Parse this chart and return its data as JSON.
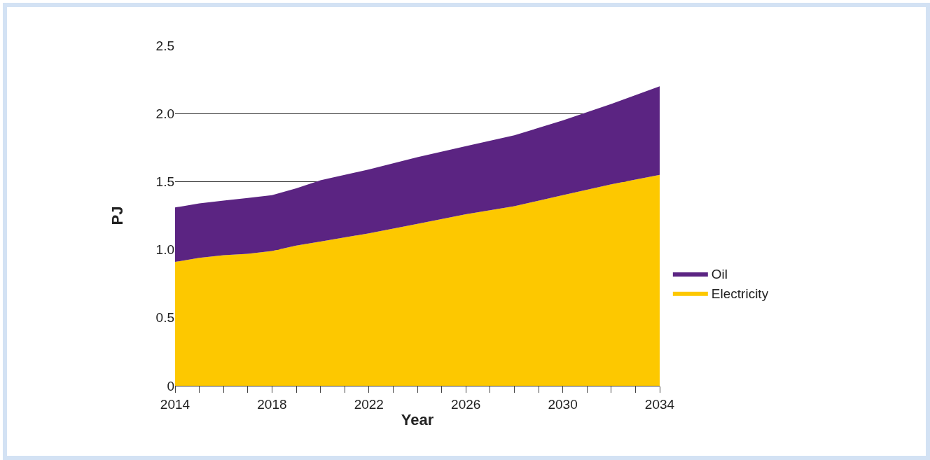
{
  "chart_data": {
    "type": "area",
    "stacked": true,
    "xlabel": "Year",
    "ylabel": "PJ",
    "x": [
      2014,
      2015,
      2016,
      2017,
      2018,
      2019,
      2020,
      2022,
      2024,
      2026,
      2028,
      2030,
      2032,
      2034
    ],
    "series": [
      {
        "name": "Electricity",
        "color": "#fdc800",
        "values": [
          0.91,
          0.94,
          0.96,
          0.97,
          0.99,
          1.03,
          1.06,
          1.12,
          1.19,
          1.26,
          1.32,
          1.4,
          1.48,
          1.55
        ]
      },
      {
        "name": "Oil",
        "color": "#5b2482",
        "values": [
          0.4,
          0.4,
          0.4,
          0.41,
          0.41,
          0.42,
          0.45,
          0.47,
          0.49,
          0.5,
          0.52,
          0.55,
          0.59,
          0.65
        ]
      }
    ],
    "xlim": [
      2014,
      2034
    ],
    "xticks": [
      2014,
      {
        "value": 2015,
        "label": null
      },
      {
        "value": 2016,
        "label": null
      },
      {
        "value": 2017,
        "label": null
      },
      2018,
      {
        "value": 2019,
        "label": null
      },
      {
        "value": 2020,
        "label": null
      },
      {
        "value": 2021,
        "label": null
      },
      2022,
      {
        "value": 2023,
        "label": null
      },
      {
        "value": 2024,
        "label": null
      },
      {
        "value": 2025,
        "label": null
      },
      2026,
      {
        "value": 2027,
        "label": null
      },
      {
        "value": 2028,
        "label": null
      },
      {
        "value": 2029,
        "label": null
      },
      2030,
      {
        "value": 2031,
        "label": null
      },
      {
        "value": 2032,
        "label": null
      },
      {
        "value": 2033,
        "label": null
      },
      2034
    ],
    "ylim": [
      0,
      2.5
    ],
    "yticks": [
      0,
      {
        "value": 0.5,
        "label": "0.5"
      },
      {
        "value": 1,
        "label": "1.0"
      },
      {
        "value": 1.5,
        "label": "1.5"
      },
      {
        "value": 2,
        "label": "2.0"
      },
      {
        "value": 2.5,
        "label": "2.5"
      }
    ],
    "grid": "y",
    "legend": "right"
  }
}
